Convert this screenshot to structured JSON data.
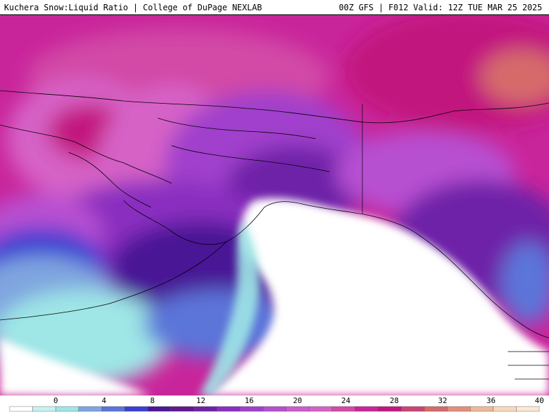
{
  "header": {
    "left_title": "Kuchera Snow:Liquid Ratio | College of DuPage NEXLAB",
    "right_title": "00Z GFS | F012 Valid: 12Z TUE MAR 25 2025"
  },
  "legend": {
    "ticks": [
      "0",
      "4",
      "8",
      "12",
      "16",
      "20",
      "24",
      "28",
      "32",
      "36",
      "40"
    ],
    "colors": [
      "#ffffff",
      "#c6f3f1",
      "#9fe6e6",
      "#7fa5df",
      "#5b74d9",
      "#3b3fd2",
      "#4a1796",
      "#62178e",
      "#6e22a8",
      "#8a2fc0",
      "#a03fcc",
      "#b74fd1",
      "#c95ccf",
      "#d662c6",
      "#d24aa6",
      "#c9259b",
      "#c2187f",
      "#c94574",
      "#d66b6b",
      "#e38f7a",
      "#eeb79a",
      "#f8d8bd",
      "#fbe9d4"
    ]
  },
  "colors": {
    "ocean": "#ffffff",
    "coast": "#000000"
  }
}
